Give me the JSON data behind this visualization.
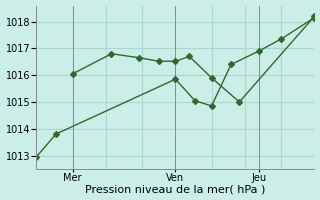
{
  "series_a_x": [
    0.13,
    0.27,
    0.37,
    0.44,
    0.5,
    0.55,
    0.63,
    0.73,
    1.0
  ],
  "series_a_y": [
    1016.05,
    1016.8,
    1016.65,
    1016.52,
    1016.52,
    1016.7,
    1015.9,
    1015.0,
    1018.2
  ],
  "series_b_x": [
    0.0,
    0.07,
    0.5,
    0.57,
    0.63,
    0.7,
    0.8,
    0.88,
    1.0
  ],
  "series_b_y": [
    1012.95,
    1013.8,
    1015.85,
    1015.05,
    1014.85,
    1016.4,
    1016.9,
    1017.35,
    1018.15
  ],
  "line_color": "#2d6a2d",
  "background_color": "#cceee8",
  "grid_color": "#aad8d0",
  "xlabel": "Pression niveau de la mer( hPa )",
  "ylim": [
    1012.5,
    1018.6
  ],
  "yticks": [
    1013,
    1014,
    1015,
    1016,
    1017,
    1018
  ],
  "vline_positions": [
    0.13,
    0.5,
    0.8
  ],
  "xtick_positions": [
    0.13,
    0.5,
    0.8
  ],
  "xtick_labels": [
    "Mer",
    "Ven",
    "Jeu"
  ],
  "xlabel_fontsize": 8,
  "tick_fontsize": 7
}
